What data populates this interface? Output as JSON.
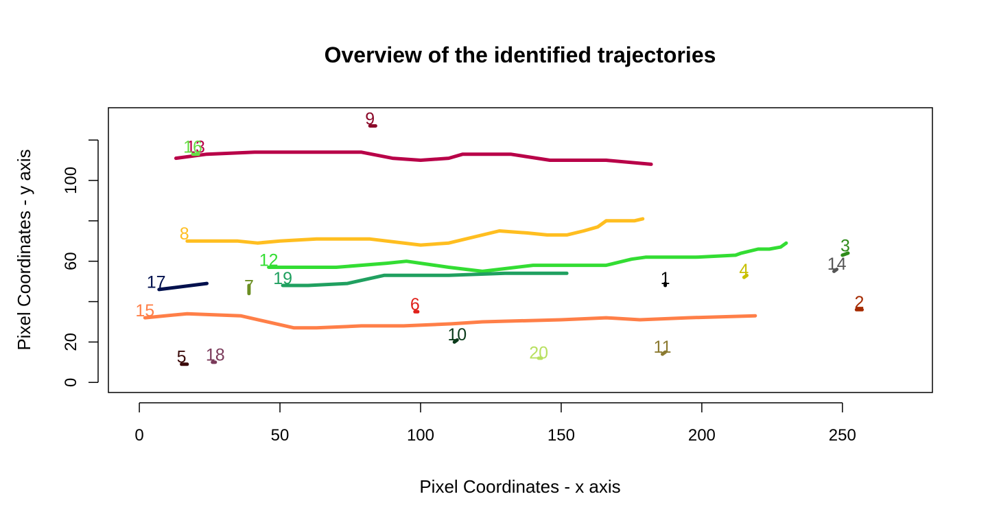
{
  "chart_data": {
    "type": "line",
    "title": "Overview of the identified trajectories",
    "xlabel": "Pixel Coordinates - x axis",
    "ylabel": "Pixel Coordinates - y axis",
    "xlim": [
      -11,
      282
    ],
    "ylim": [
      -5,
      136
    ],
    "xticks": [
      0,
      50,
      100,
      150,
      200,
      250
    ],
    "yticks": [
      0,
      20,
      60,
      100
    ],
    "ytick_marks": [
      0,
      20,
      40,
      60,
      80,
      100,
      120
    ],
    "grid": false,
    "legend": "none",
    "series": [
      {
        "name": "1",
        "color": "#000000",
        "points": [
          [
            187,
            48
          ],
          [
            187,
            49
          ]
        ]
      },
      {
        "name": "2",
        "color": "#A52A00",
        "points": [
          [
            255,
            36
          ],
          [
            257,
            36
          ]
        ]
      },
      {
        "name": "3",
        "color": "#2E8B1A",
        "points": [
          [
            250,
            63
          ],
          [
            252,
            64
          ]
        ]
      },
      {
        "name": "4",
        "color": "#C8C000",
        "points": [
          [
            215,
            52
          ],
          [
            216,
            53
          ]
        ]
      },
      {
        "name": "5",
        "color": "#3B0A0A",
        "points": [
          [
            15,
            9
          ],
          [
            17,
            9
          ]
        ]
      },
      {
        "name": "6",
        "color": "#E0201A",
        "points": [
          [
            98,
            35
          ],
          [
            99,
            35
          ]
        ]
      },
      {
        "name": "7",
        "color": "#6B8E23",
        "points": [
          [
            39,
            44
          ],
          [
            39,
            48
          ]
        ]
      },
      {
        "name": "8",
        "color": "#FFBE20",
        "points": [
          [
            17,
            70
          ],
          [
            30,
            70
          ],
          [
            35,
            70
          ],
          [
            42,
            69
          ],
          [
            50,
            70
          ],
          [
            63,
            71
          ],
          [
            75,
            71
          ],
          [
            82,
            71
          ],
          [
            100,
            68
          ],
          [
            110,
            69
          ],
          [
            128,
            75
          ],
          [
            138,
            74
          ],
          [
            145,
            73
          ],
          [
            152,
            73
          ],
          [
            158,
            75
          ],
          [
            163,
            77
          ],
          [
            166,
            80
          ],
          [
            172,
            80
          ],
          [
            176,
            80
          ],
          [
            179,
            81
          ]
        ]
      },
      {
        "name": "9",
        "color": "#8B0A2A",
        "points": [
          [
            82,
            127
          ],
          [
            84,
            127
          ]
        ]
      },
      {
        "name": "10",
        "color": "#0A3A1A",
        "points": [
          [
            112,
            20
          ],
          [
            113,
            21
          ]
        ]
      },
      {
        "name": "11",
        "color": "#8B7A30",
        "points": [
          [
            186,
            14
          ],
          [
            187,
            15
          ]
        ]
      },
      {
        "name": "12",
        "color": "#33DD33",
        "points": [
          [
            46,
            57
          ],
          [
            60,
            57
          ],
          [
            70,
            57
          ],
          [
            88,
            59
          ],
          [
            95,
            60
          ],
          [
            110,
            57
          ],
          [
            122,
            55
          ],
          [
            140,
            58
          ],
          [
            152,
            58
          ],
          [
            166,
            58
          ],
          [
            175,
            61
          ],
          [
            180,
            62
          ],
          [
            198,
            62
          ],
          [
            212,
            63
          ],
          [
            214,
            64
          ],
          [
            220,
            66
          ],
          [
            224,
            66
          ],
          [
            228,
            67
          ],
          [
            230,
            69
          ]
        ]
      },
      {
        "name": "13",
        "color": "#B80048",
        "points": [
          [
            13,
            111
          ],
          [
            24,
            113
          ],
          [
            41,
            114
          ],
          [
            63,
            114
          ],
          [
            79,
            114
          ],
          [
            90,
            111
          ],
          [
            100,
            110
          ],
          [
            110,
            111
          ],
          [
            115,
            113
          ],
          [
            132,
            113
          ],
          [
            146,
            110
          ],
          [
            166,
            110
          ],
          [
            182,
            108
          ]
        ]
      },
      {
        "name": "14",
        "color": "#555555",
        "points": [
          [
            247,
            55
          ],
          [
            248,
            56
          ]
        ]
      },
      {
        "name": "15",
        "color": "#FF7F48",
        "points": [
          [
            2,
            32
          ],
          [
            17,
            34
          ],
          [
            36,
            33
          ],
          [
            55,
            27
          ],
          [
            63,
            27
          ],
          [
            79,
            28
          ],
          [
            94,
            28
          ],
          [
            111,
            29
          ],
          [
            122,
            30
          ],
          [
            150,
            31
          ],
          [
            166,
            32
          ],
          [
            178,
            31
          ],
          [
            195,
            32
          ],
          [
            219,
            33
          ]
        ]
      },
      {
        "name": "16",
        "color": "#66DD44",
        "points": [
          [
            19,
            113
          ],
          [
            21,
            113
          ]
        ]
      },
      {
        "name": "17",
        "color": "#00104D",
        "points": [
          [
            7,
            46
          ],
          [
            24,
            49
          ]
        ]
      },
      {
        "name": "18",
        "color": "#7A3A5A",
        "points": [
          [
            26,
            10
          ],
          [
            27,
            10
          ]
        ]
      },
      {
        "name": "19",
        "color": "#20A060",
        "points": [
          [
            51,
            48
          ],
          [
            60,
            48
          ],
          [
            74,
            49
          ],
          [
            87,
            53
          ],
          [
            110,
            53
          ],
          [
            130,
            54
          ],
          [
            152,
            54
          ]
        ]
      },
      {
        "name": "20",
        "color": "#B8E060",
        "points": [
          [
            142,
            12
          ],
          [
            143,
            12
          ]
        ]
      }
    ],
    "labels": [
      {
        "text": "1",
        "x": 187,
        "y": 51,
        "color": "#000000"
      },
      {
        "text": "2",
        "x": 256,
        "y": 39,
        "color": "#A52A00"
      },
      {
        "text": "3",
        "x": 251,
        "y": 67,
        "color": "#2E8B1A"
      },
      {
        "text": "4",
        "x": 215,
        "y": 55,
        "color": "#C8C000"
      },
      {
        "text": "5",
        "x": 15,
        "y": 12,
        "color": "#3B0A0A"
      },
      {
        "text": "6",
        "x": 98,
        "y": 38,
        "color": "#E0201A"
      },
      {
        "text": "7",
        "x": 39,
        "y": 47,
        "color": "#6B8E23"
      },
      {
        "text": "8",
        "x": 16,
        "y": 73,
        "color": "#FFBE20"
      },
      {
        "text": "9",
        "x": 82,
        "y": 130,
        "color": "#8B0A2A"
      },
      {
        "text": "10",
        "x": 113,
        "y": 23,
        "color": "#0A3A1A"
      },
      {
        "text": "11",
        "x": 186,
        "y": 17,
        "color": "#8B7A30"
      },
      {
        "text": "12",
        "x": 46,
        "y": 60,
        "color": "#33DD33"
      },
      {
        "text": "13",
        "x": 20,
        "y": 116,
        "color": "#B80048"
      },
      {
        "text": "14",
        "x": 248,
        "y": 58,
        "color": "#555555"
      },
      {
        "text": "15",
        "x": 2,
        "y": 35,
        "color": "#FF7F48"
      },
      {
        "text": "16",
        "x": 19,
        "y": 116,
        "color": "#66DD44"
      },
      {
        "text": "17",
        "x": 6,
        "y": 49,
        "color": "#00104D"
      },
      {
        "text": "18",
        "x": 27,
        "y": 13,
        "color": "#7A3A5A"
      },
      {
        "text": "19",
        "x": 51,
        "y": 51,
        "color": "#20A060"
      },
      {
        "text": "20",
        "x": 142,
        "y": 14,
        "color": "#B8E060"
      }
    ]
  }
}
